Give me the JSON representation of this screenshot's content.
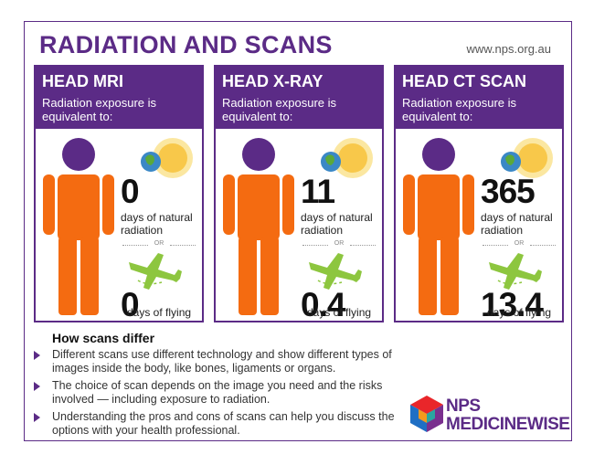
{
  "header": {
    "title": "RADIATION AND SCANS",
    "website": "www.nps.org.au"
  },
  "cards": [
    {
      "title": "HEAD MRI",
      "subtitle": "Radiation exposure is equivalent to:",
      "natural_days": "0",
      "natural_label": "days of natural radiation",
      "or_label": "OR",
      "flying_days": "0",
      "flying_label": "days of flying"
    },
    {
      "title": "HEAD X-RAY",
      "subtitle": "Radiation exposure is equivalent to:",
      "natural_days": "11",
      "natural_label": "days of natural radiation",
      "or_label": "OR",
      "flying_days": "0.4",
      "flying_label": "days of flying"
    },
    {
      "title": "HEAD CT SCAN",
      "subtitle": "Radiation exposure is equivalent to:",
      "natural_days": "365",
      "natural_label": "days of natural radiation",
      "or_label": "OR",
      "flying_days": "13.4",
      "flying_label": "days of flying"
    }
  ],
  "section": {
    "title": "How scans differ",
    "bullets": [
      "Different scans use different technology and show different types of images inside the body, like bones, ligaments or organs.",
      "The choice of scan depends on the image you need and the risks involved — including exposure to radiation.",
      "Understanding the pros and cons of scans can help you discuss the options with your health professional."
    ]
  },
  "logo": {
    "line1": "NPS",
    "line2": "MEDICINEWISE"
  },
  "colors": {
    "purple": "#5b2b86",
    "orange": "#f46b11",
    "green": "#8dc63f",
    "sun": "#f8c84a"
  }
}
